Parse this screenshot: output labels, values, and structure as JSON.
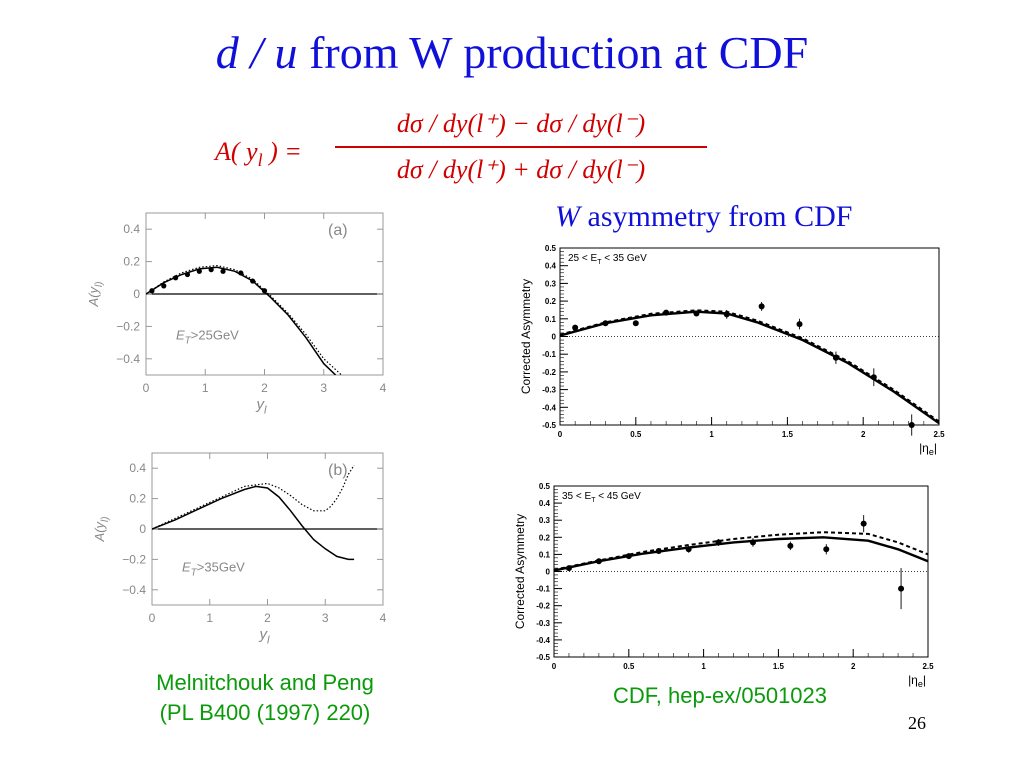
{
  "slide": {
    "title_var": "d / u",
    "title_rest": " from W production at CDF",
    "formula": {
      "lhs": "A( y",
      "lhs_sub": "l",
      "lhs_end": " ) =",
      "numerator": "dσ / dy(l⁺) − dσ / dy(l⁻)",
      "denominator": "dσ / dy(l⁺) + dσ / dy(l⁻)"
    },
    "cdf_heading_var": "W",
    "cdf_heading_rest": " asymmetry from CDF",
    "left_caption_line1": "Melnitchouk and Peng",
    "left_caption_line2": "(PL B400 (1997) 220)",
    "right_caption": "CDF, hep-ex/0501023",
    "page_number": "26"
  },
  "chart_data": [
    {
      "type": "line",
      "panel": "(a)",
      "annotation": "E_T>25GeV",
      "xlabel": "y_l",
      "ylabel": "A(y_l)",
      "xlim": [
        0,
        4
      ],
      "ylim": [
        -0.5,
        0.5
      ],
      "xticks": [
        "0",
        "1",
        "2",
        "3",
        "4"
      ],
      "yticks": [
        "0.4",
        "0.2",
        "0",
        "−0.2",
        "−0.4"
      ],
      "yticks_values": [
        0.4,
        0.2,
        0,
        -0.2,
        -0.4
      ],
      "series": [
        {
          "style": "solid",
          "x": [
            0,
            0.3,
            0.6,
            0.9,
            1.2,
            1.5,
            1.8,
            2.1,
            2.4,
            2.7,
            3.0,
            3.2
          ],
          "y": [
            0,
            0.07,
            0.12,
            0.155,
            0.165,
            0.14,
            0.08,
            -0.02,
            -0.13,
            -0.27,
            -0.43,
            -0.5
          ]
        },
        {
          "style": "dotted",
          "x": [
            0,
            0.3,
            0.6,
            0.9,
            1.2,
            1.5,
            1.8,
            2.1,
            2.4,
            2.7,
            3.0,
            3.3
          ],
          "y": [
            0,
            0.075,
            0.13,
            0.165,
            0.175,
            0.15,
            0.09,
            -0.01,
            -0.12,
            -0.25,
            -0.4,
            -0.5
          ]
        },
        {
          "style": "points",
          "x": [
            0.1,
            0.3,
            0.5,
            0.7,
            0.9,
            1.1,
            1.3,
            1.6,
            1.8,
            2.0
          ],
          "y": [
            0.02,
            0.05,
            0.1,
            0.12,
            0.14,
            0.15,
            0.14,
            0.13,
            0.08,
            0.02
          ]
        }
      ]
    },
    {
      "type": "line",
      "panel": "(b)",
      "annotation": "E_T>35GeV",
      "xlabel": "y_l",
      "ylabel": "A(y_l)",
      "xlim": [
        0,
        4
      ],
      "ylim": [
        -0.5,
        0.5
      ],
      "xticks": [
        "0",
        "1",
        "2",
        "3",
        "4"
      ],
      "yticks": [
        "0.4",
        "0.2",
        "0",
        "−0.2",
        "−0.4"
      ],
      "yticks_values": [
        0.4,
        0.2,
        0,
        -0.2,
        -0.4
      ],
      "series": [
        {
          "style": "solid",
          "x": [
            0,
            0.4,
            0.8,
            1.2,
            1.6,
            1.8,
            2.0,
            2.2,
            2.4,
            2.6,
            2.8,
            3.0,
            3.2,
            3.4,
            3.5
          ],
          "y": [
            0,
            0.06,
            0.13,
            0.2,
            0.26,
            0.28,
            0.27,
            0.21,
            0.12,
            0.02,
            -0.07,
            -0.13,
            -0.18,
            -0.2,
            -0.2
          ]
        },
        {
          "style": "dotted",
          "x": [
            0,
            0.4,
            0.8,
            1.2,
            1.6,
            2.0,
            2.2,
            2.4,
            2.6,
            2.8,
            3.0,
            3.1,
            3.2,
            3.3,
            3.4,
            3.5
          ],
          "y": [
            0,
            0.07,
            0.14,
            0.21,
            0.28,
            0.3,
            0.27,
            0.22,
            0.16,
            0.12,
            0.12,
            0.15,
            0.2,
            0.27,
            0.36,
            0.42
          ]
        }
      ]
    },
    {
      "type": "scatter",
      "label": "25 < E_T < 35 GeV",
      "ylabel": "Corrected Asymmetry",
      "xlabel": "|η_e|",
      "xlim": [
        0,
        2.5
      ],
      "ylim": [
        -0.5,
        0.5
      ],
      "xticks": [
        "0",
        "0.5",
        "1",
        "1.5",
        "2",
        "2.5"
      ],
      "yticks": [
        "0.5",
        "0.4",
        "0.3",
        "0.2",
        "0.1",
        "0",
        "-0.1",
        "-0.2",
        "-0.3",
        "-0.4",
        "-0.5"
      ],
      "points": {
        "x": [
          0.1,
          0.3,
          0.5,
          0.7,
          0.9,
          1.1,
          1.33,
          1.58,
          1.82,
          2.07,
          2.32
        ],
        "y": [
          0.05,
          0.075,
          0.075,
          0.135,
          0.13,
          0.125,
          0.17,
          0.07,
          -0.12,
          -0.23,
          -0.5
        ],
        "err": [
          0.015,
          0.015,
          0.015,
          0.015,
          0.015,
          0.025,
          0.025,
          0.03,
          0.035,
          0.05,
          0.06
        ]
      },
      "series": [
        {
          "style": "solid",
          "x": [
            0,
            0.3,
            0.6,
            0.9,
            1.1,
            1.3,
            1.6,
            1.9,
            2.2,
            2.5
          ],
          "y": [
            0.005,
            0.075,
            0.12,
            0.14,
            0.13,
            0.08,
            -0.02,
            -0.15,
            -0.31,
            -0.49
          ]
        },
        {
          "style": "dashed",
          "x": [
            0,
            0.3,
            0.6,
            0.9,
            1.1,
            1.3,
            1.6,
            1.9,
            2.2,
            2.5
          ],
          "y": [
            0.01,
            0.08,
            0.128,
            0.148,
            0.14,
            0.09,
            -0.01,
            -0.14,
            -0.3,
            -0.48
          ]
        }
      ]
    },
    {
      "type": "scatter",
      "label": "35 < E_T < 45 GeV",
      "ylabel": "Corrected Asymmetry",
      "xlabel": "|η_e|",
      "xlim": [
        0,
        2.5
      ],
      "ylim": [
        -0.5,
        0.5
      ],
      "xticks": [
        "0",
        "0.5",
        "1",
        "1.5",
        "2",
        "2.5"
      ],
      "yticks": [
        "0.5",
        "0.4",
        "0.3",
        "0.2",
        "0.1",
        "0",
        "-0.1",
        "-0.2",
        "-0.3",
        "-0.4",
        "-0.5"
      ],
      "points": {
        "x": [
          0.1,
          0.3,
          0.5,
          0.7,
          0.9,
          1.1,
          1.33,
          1.58,
          1.82,
          2.07,
          2.32
        ],
        "y": [
          0.02,
          0.06,
          0.09,
          0.12,
          0.13,
          0.17,
          0.17,
          0.15,
          0.13,
          0.28,
          -0.1
        ],
        "err": [
          0.015,
          0.015,
          0.015,
          0.015,
          0.02,
          0.02,
          0.025,
          0.025,
          0.03,
          0.05,
          0.12
        ]
      },
      "series": [
        {
          "style": "solid",
          "x": [
            0,
            0.3,
            0.6,
            0.9,
            1.2,
            1.5,
            1.8,
            2.1,
            2.3,
            2.5
          ],
          "y": [
            0.005,
            0.06,
            0.105,
            0.14,
            0.17,
            0.19,
            0.2,
            0.18,
            0.13,
            0.06
          ]
        },
        {
          "style": "dashed",
          "x": [
            0,
            0.3,
            0.6,
            0.9,
            1.2,
            1.5,
            1.8,
            2.1,
            2.3,
            2.5
          ],
          "y": [
            0.01,
            0.065,
            0.115,
            0.155,
            0.19,
            0.215,
            0.23,
            0.22,
            0.17,
            0.1
          ]
        }
      ]
    }
  ]
}
